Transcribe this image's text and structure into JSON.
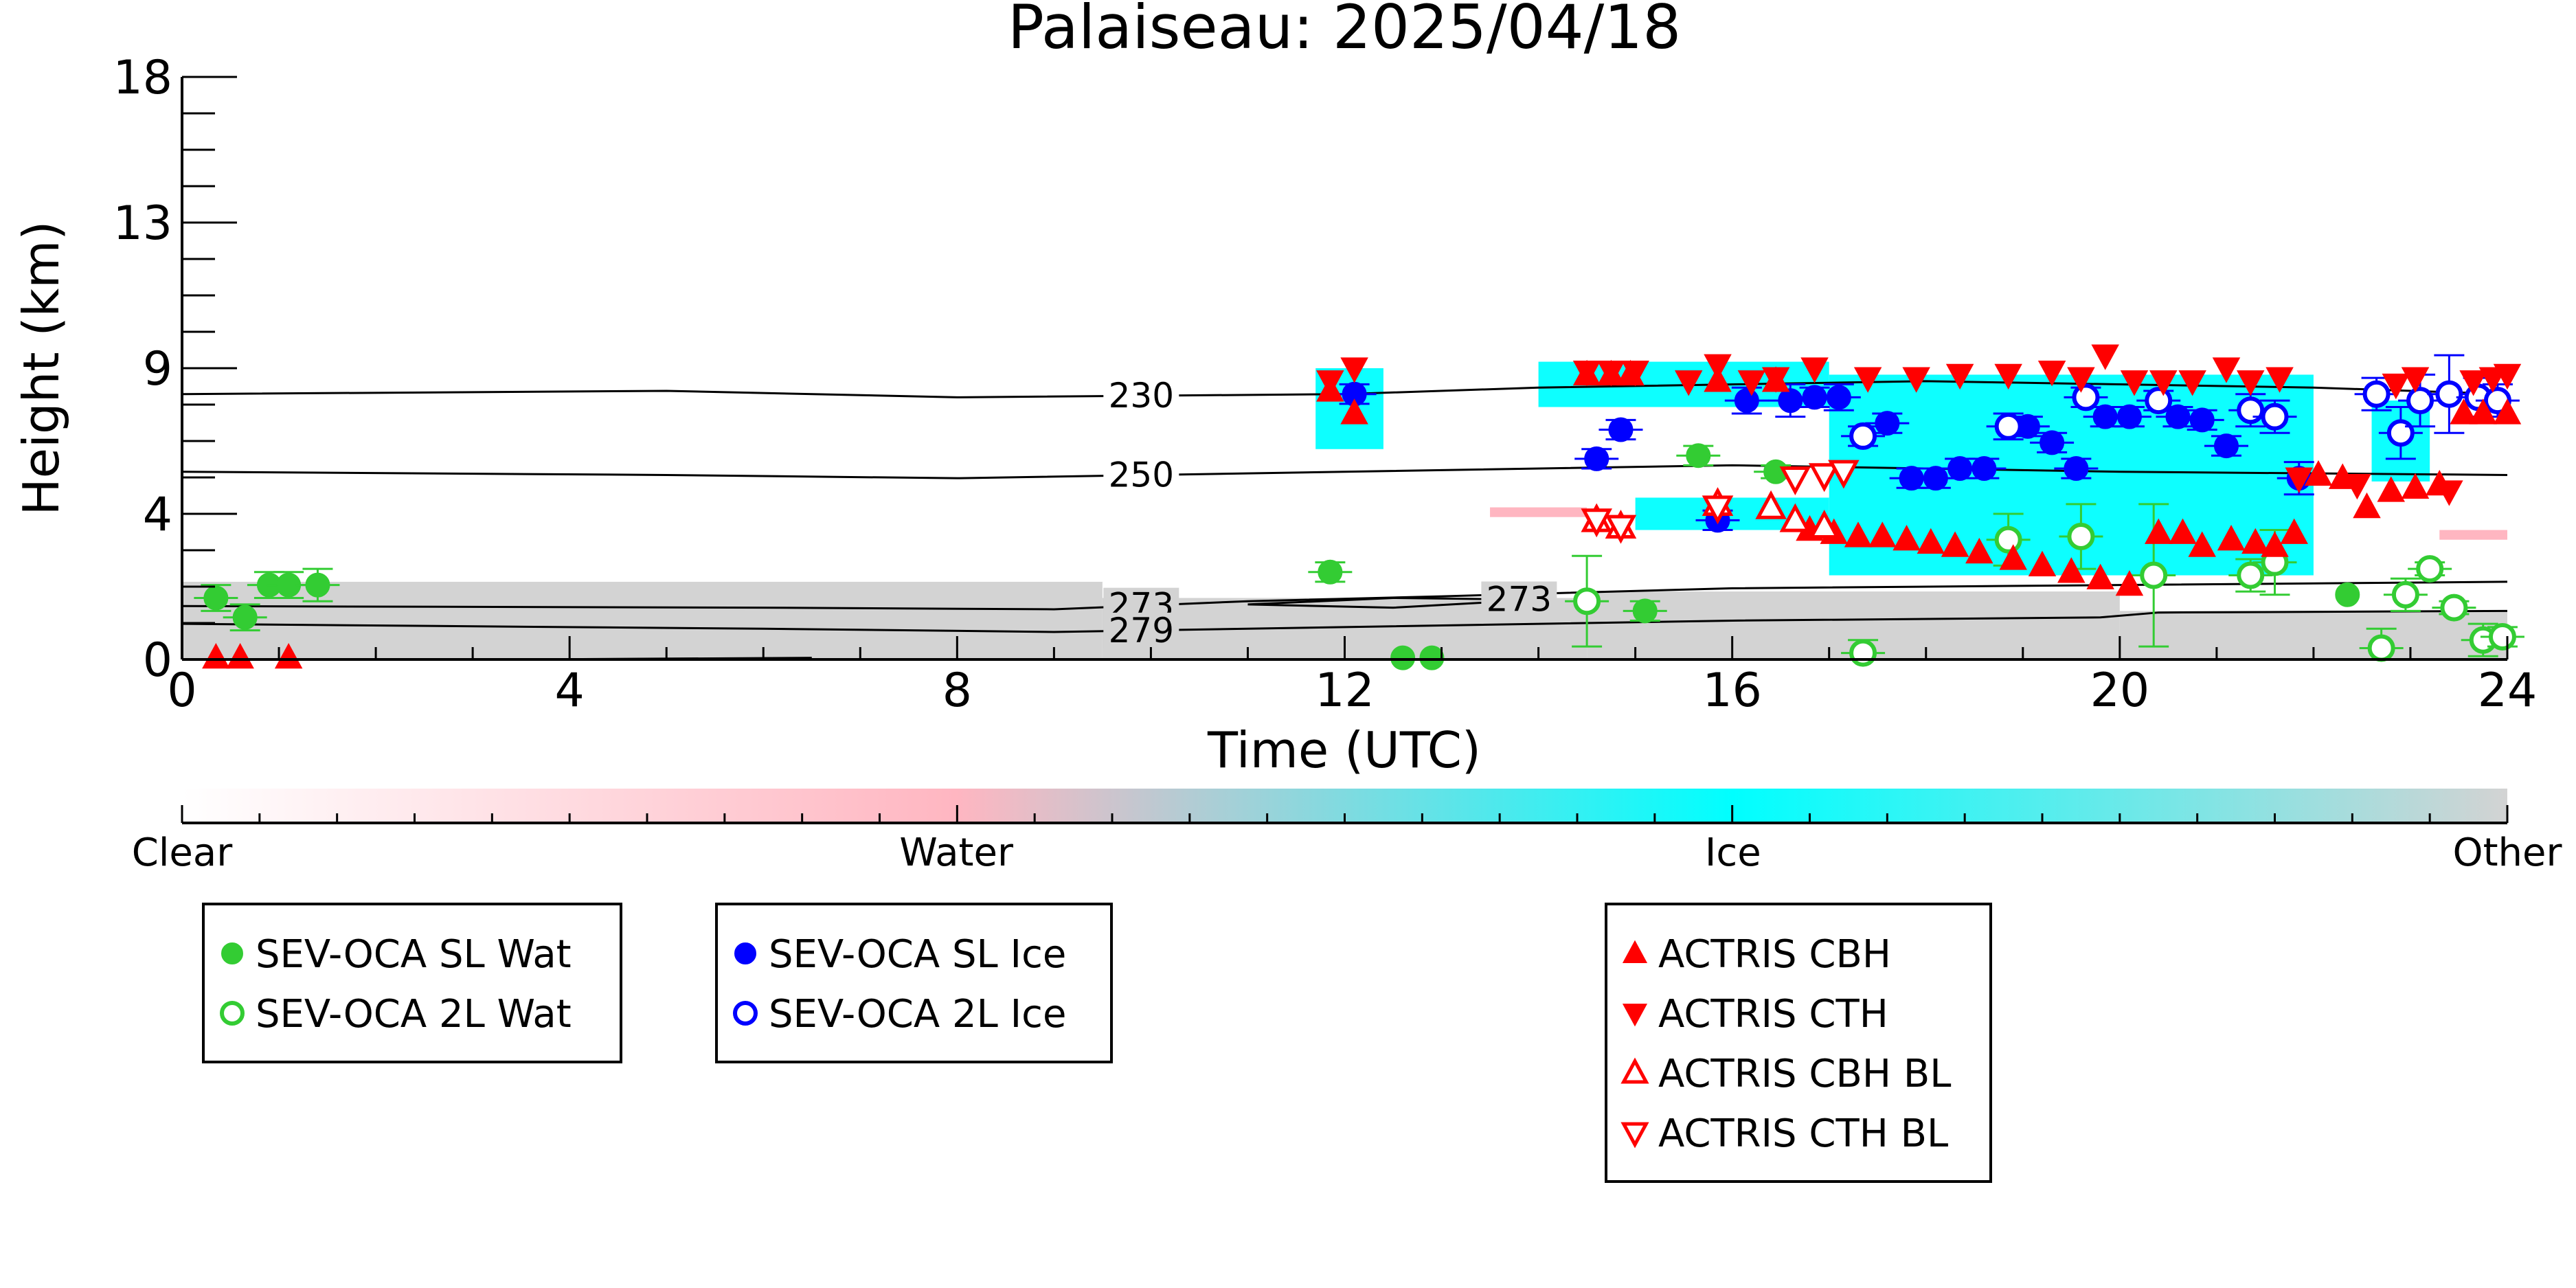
{
  "chart_data": {
    "type": "scatter",
    "title": "Palaiseau: 2025/04/18",
    "xlabel": "Time (UTC)",
    "ylabel": "Height (km)",
    "xlim": [
      0,
      24
    ],
    "ylim": [
      0,
      18
    ],
    "xticks": [
      "0",
      "4",
      "8",
      "12",
      "16",
      "20",
      "24"
    ],
    "xtick_values": [
      0,
      4,
      8,
      12,
      16,
      20,
      24
    ],
    "yticks": [
      "0",
      "4",
      "9",
      "13",
      "18"
    ],
    "ytick_values": [
      0,
      4.5,
      9,
      13.5,
      18
    ],
    "grid": false,
    "background_field": {
      "description_colors": {
        "other": "#d3d3d3",
        "ice": "#00ffff",
        "water": "#ffb6c1"
      },
      "other_regions": [
        {
          "x": [
            0,
            9.5
          ],
          "y_top": 2.4
        },
        {
          "x": [
            9.5,
            14.5
          ],
          "y_top": 1.9
        },
        {
          "x": [
            14.5,
            20
          ],
          "y_top": 2.1
        },
        {
          "x": [
            20,
            24
          ],
          "y_top": 1.5
        }
      ],
      "ice_regions": [
        {
          "x": [
            11.7,
            12.4
          ],
          "y": [
            6.5,
            9.0
          ]
        },
        {
          "x": [
            14,
            17
          ],
          "y": [
            7.8,
            9.2
          ]
        },
        {
          "x": [
            17,
            22
          ],
          "y": [
            2.6,
            8.8
          ]
        },
        {
          "x": [
            22.6,
            23.2
          ],
          "y": [
            5.5,
            8.0
          ]
        },
        {
          "x": [
            15,
            17
          ],
          "y": [
            4.0,
            5.0
          ]
        }
      ],
      "water_regions": [
        {
          "x": [
            13.5,
            14.5
          ],
          "y": [
            4.4,
            4.7
          ]
        },
        {
          "x": [
            23.3,
            24
          ],
          "y": [
            3.7,
            4.0
          ]
        }
      ]
    },
    "contours": [
      {
        "label": "230",
        "label_x": 9.9,
        "points": [
          [
            0,
            8.2
          ],
          [
            5,
            8.3
          ],
          [
            8,
            8.1
          ],
          [
            12,
            8.2
          ],
          [
            14,
            8.4
          ],
          [
            18,
            8.6
          ],
          [
            22,
            8.4
          ],
          [
            24,
            8.2
          ]
        ]
      },
      {
        "label": "250",
        "label_x": 9.9,
        "points": [
          [
            0,
            5.8
          ],
          [
            5,
            5.7
          ],
          [
            8,
            5.6
          ],
          [
            12,
            5.8
          ],
          [
            16,
            6.0
          ],
          [
            20,
            5.8
          ],
          [
            24,
            5.7
          ]
        ]
      },
      {
        "label": "273",
        "label_x": 9.9,
        "points": [
          [
            0,
            1.65
          ],
          [
            6,
            1.6
          ],
          [
            9,
            1.55
          ],
          [
            11,
            1.8
          ],
          [
            13,
            1.95
          ],
          [
            16,
            2.2
          ],
          [
            20,
            2.3
          ],
          [
            24,
            2.4
          ]
        ]
      },
      {
        "label": "273",
        "label_x": 13.8,
        "points": [
          [
            11,
            1.7
          ],
          [
            12.5,
            1.9
          ],
          [
            14,
            1.85
          ],
          [
            12.5,
            1.6
          ],
          [
            11,
            1.7
          ]
        ]
      },
      {
        "label": "279",
        "label_x": 9.9,
        "points": [
          [
            0,
            1.1
          ],
          [
            6,
            0.95
          ],
          [
            9,
            0.85
          ],
          [
            12,
            1.0
          ],
          [
            16,
            1.2
          ],
          [
            19.8,
            1.3
          ],
          [
            20.4,
            1.45
          ],
          [
            24,
            1.5
          ]
        ]
      },
      {
        "label": "",
        "label_x": null,
        "points": [
          [
            3.5,
            0.0
          ],
          [
            6.5,
            0.05
          ]
        ]
      }
    ],
    "series": [
      {
        "name": "SEV-OCA SL Wat",
        "marker": "circle",
        "filled": true,
        "color": "#33cc33",
        "x": [
          0.35,
          0.65,
          0.9,
          1.1,
          1.4,
          11.85,
          12.6,
          12.9,
          15.1,
          15.65,
          16.45,
          22.35
        ],
        "y": [
          1.9,
          1.3,
          2.3,
          2.3,
          2.3,
          2.7,
          0.05,
          0.05,
          1.5,
          6.3,
          5.8,
          2.0
        ],
        "err": [
          0.4,
          0.4,
          0.4,
          0.4,
          0.5,
          0.3,
          0,
          0,
          0.3,
          0.3,
          0.2,
          0
        ]
      },
      {
        "name": "SEV-OCA 2L Wat",
        "marker": "circle",
        "filled": false,
        "color": "#33cc33",
        "x": [
          14.5,
          17.35,
          18.85,
          19.6,
          20.35,
          21.35,
          21.6,
          22.7,
          22.95,
          23.2,
          23.45,
          23.75,
          23.95
        ],
        "y": [
          1.8,
          0.2,
          3.7,
          3.8,
          2.6,
          2.6,
          3.0,
          0.35,
          2.0,
          2.8,
          1.6,
          0.6,
          0.7
        ],
        "err": [
          1.4,
          0.4,
          0.8,
          1.0,
          2.2,
          0.5,
          1.0,
          0.6,
          0.5,
          0.2,
          0.2,
          0.5,
          0.3
        ]
      },
      {
        "name": "SEV-OCA SL Ice",
        "marker": "circle",
        "filled": true,
        "color": "#0000ff",
        "x": [
          12.1,
          14.6,
          14.85,
          15.85,
          16.15,
          16.6,
          16.85,
          17.1,
          17.6,
          17.85,
          18.1,
          18.35,
          18.6,
          19.05,
          19.3,
          19.55,
          19.85,
          20.1,
          20.6,
          20.85,
          21.1,
          21.85
        ],
        "y": [
          8.2,
          6.2,
          7.1,
          4.3,
          8.0,
          8.0,
          8.1,
          8.1,
          7.3,
          5.6,
          5.6,
          5.9,
          5.9,
          7.2,
          6.7,
          5.9,
          7.5,
          7.5,
          7.5,
          7.4,
          6.6,
          5.6
        ],
        "err": [
          0.3,
          0.3,
          0.3,
          0.3,
          0.4,
          0.5,
          0.3,
          0.4,
          0.3,
          0.3,
          0.3,
          0.3,
          0.3,
          0.3,
          0.3,
          0.3,
          0.3,
          0.3,
          0.3,
          0.3,
          0.3,
          0.5
        ]
      },
      {
        "name": "SEV-OCA 2L Ice",
        "marker": "circle",
        "filled": false,
        "color": "#0000ff",
        "x": [
          17.35,
          18.85,
          19.65,
          20.4,
          21.35,
          21.6,
          22.65,
          22.9,
          23.1,
          23.4,
          23.7,
          23.9
        ],
        "y": [
          6.9,
          7.2,
          8.1,
          8.0,
          7.7,
          7.5,
          8.2,
          7.0,
          8.0,
          8.2,
          8.1,
          8.0
        ],
        "err": [
          0.3,
          0.4,
          0.3,
          0.3,
          0.5,
          0.5,
          0.5,
          0.8,
          0.8,
          1.2,
          0.6,
          0.5
        ]
      },
      {
        "name": "ACTRIS CBH",
        "marker": "triangle-up",
        "filled": true,
        "color": "#ff0000",
        "x": [
          0.35,
          0.6,
          1.1,
          11.85,
          12.1,
          14.5,
          14.75,
          14.95,
          15.85,
          16.45,
          16.8,
          17.05,
          17.3,
          17.55,
          17.8,
          18.05,
          18.3,
          18.55,
          18.9,
          19.2,
          19.5,
          19.8,
          20.1,
          20.4,
          20.65,
          20.85,
          21.15,
          21.4,
          21.6,
          21.8,
          22.05,
          22.3,
          22.55,
          22.8,
          23.05,
          23.3,
          23.55,
          23.75,
          24.0
        ],
        "y": [
          0.05,
          0.05,
          0.05,
          8.3,
          7.6,
          8.8,
          8.8,
          8.8,
          8.6,
          8.6,
          4.0,
          3.9,
          3.8,
          3.8,
          3.7,
          3.6,
          3.5,
          3.3,
          3.1,
          2.9,
          2.7,
          2.5,
          2.3,
          3.9,
          3.9,
          3.5,
          3.7,
          3.6,
          3.5,
          3.9,
          5.7,
          5.6,
          4.7,
          5.2,
          5.3,
          5.4,
          7.6,
          7.6,
          7.6
        ]
      },
      {
        "name": "ACTRIS CTH",
        "marker": "triangle-down",
        "filled": true,
        "color": "#ff0000",
        "x": [
          11.85,
          12.1,
          14.5,
          14.75,
          15.0,
          15.55,
          15.85,
          16.2,
          16.45,
          16.85,
          17.4,
          17.9,
          18.35,
          18.85,
          19.3,
          19.6,
          19.85,
          20.15,
          20.45,
          20.75,
          21.1,
          21.35,
          21.65,
          21.85,
          22.45,
          22.85,
          23.05,
          23.4,
          23.65,
          23.85,
          24.0
        ],
        "y": [
          8.6,
          9.0,
          8.9,
          8.9,
          8.9,
          8.6,
          9.1,
          8.6,
          8.7,
          9.0,
          8.7,
          8.7,
          8.8,
          8.8,
          8.9,
          8.7,
          9.4,
          8.6,
          8.6,
          8.6,
          9.0,
          8.6,
          8.7,
          5.6,
          5.4,
          8.5,
          8.7,
          5.2,
          8.6,
          8.7,
          8.8
        ]
      },
      {
        "name": "ACTRIS CBH BL",
        "marker": "triangle-up",
        "filled": false,
        "color": "#ff0000",
        "x": [
          14.6,
          14.85,
          15.85,
          16.4,
          16.65,
          16.95
        ],
        "y": [
          4.3,
          4.1,
          4.8,
          4.7,
          4.3,
          4.1
        ]
      },
      {
        "name": "ACTRIS CTH BL",
        "marker": "triangle-down",
        "filled": false,
        "color": "#ff0000",
        "x": [
          14.6,
          14.85,
          15.85,
          16.65,
          16.95,
          17.15
        ],
        "y": [
          4.3,
          4.1,
          4.7,
          5.6,
          5.7,
          5.8
        ]
      }
    ],
    "colorbar": {
      "labels": [
        "Clear",
        "Water",
        "Ice",
        "Other"
      ],
      "label_positions": [
        0,
        0.333,
        0.667,
        1.0
      ],
      "gradient": [
        "#ffffff",
        "#ffb6c1",
        "#00ffff",
        "#d3d3d3"
      ]
    },
    "legends": [
      {
        "entries": [
          "SEV-OCA SL Wat",
          "SEV-OCA 2L Wat"
        ]
      },
      {
        "entries": [
          "SEV-OCA SL Ice",
          "SEV-OCA 2L Ice"
        ]
      },
      {
        "entries": [
          "ACTRIS CBH",
          "ACTRIS CTH",
          "ACTRIS CBH BL",
          "ACTRIS CTH BL"
        ]
      }
    ]
  }
}
